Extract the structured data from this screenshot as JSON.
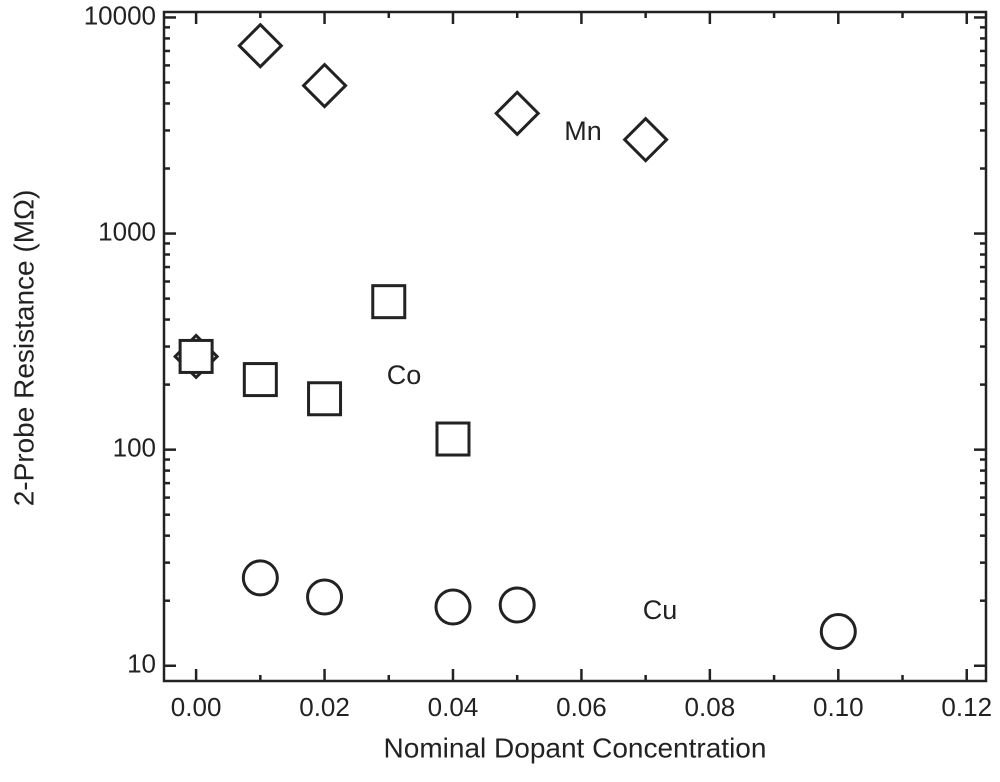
{
  "chart_data": {
    "type": "scatter",
    "log_y": true,
    "xlabel": "Nominal Dopant Concentration",
    "ylabel": "2-Probe Resistance (MΩ)",
    "xlim": [
      -0.005,
      0.123
    ],
    "ylim": [
      8.5,
      10600
    ],
    "xticks": [
      {
        "value": 0,
        "label": "0.00"
      },
      {
        "value": 0.02,
        "label": "0.02"
      },
      {
        "value": 0.04,
        "label": "0.04"
      },
      {
        "value": 0.06,
        "label": "0.06"
      },
      {
        "value": 0.08,
        "label": "0.08"
      },
      {
        "value": 0.1,
        "label": "0.10"
      },
      {
        "value": 0.12,
        "label": "0.12"
      }
    ],
    "xminorticks": [
      0.01,
      0.03,
      0.05,
      0.07,
      0.09,
      0.11
    ],
    "yticks": [
      10,
      100,
      1000,
      10000
    ],
    "yminorticks": [
      20,
      30,
      40,
      50,
      60,
      70,
      80,
      90,
      200,
      300,
      400,
      500,
      600,
      700,
      800,
      900,
      2000,
      3000,
      4000,
      5000,
      6000,
      7000,
      8000,
      9000
    ],
    "series": [
      {
        "name": "Mn",
        "marker": "diamond",
        "color": "#222222",
        "x": [
          0,
          0.01,
          0.02,
          0.05,
          0.07
        ],
        "values": [
          270,
          7400,
          4840,
          3600,
          2720
        ]
      },
      {
        "name": "Co",
        "marker": "square",
        "color": "#222222",
        "x": [
          0,
          0.01,
          0.02,
          0.03,
          0.04
        ],
        "values": [
          270,
          211,
          172,
          484,
          112
        ]
      },
      {
        "name": "Cu",
        "marker": "circle",
        "color": "#222222",
        "x": [
          0.01,
          0.02,
          0.04,
          0.05,
          0.1
        ],
        "values": [
          25.5,
          20.8,
          18.7,
          19.1,
          14.4
        ]
      }
    ]
  }
}
